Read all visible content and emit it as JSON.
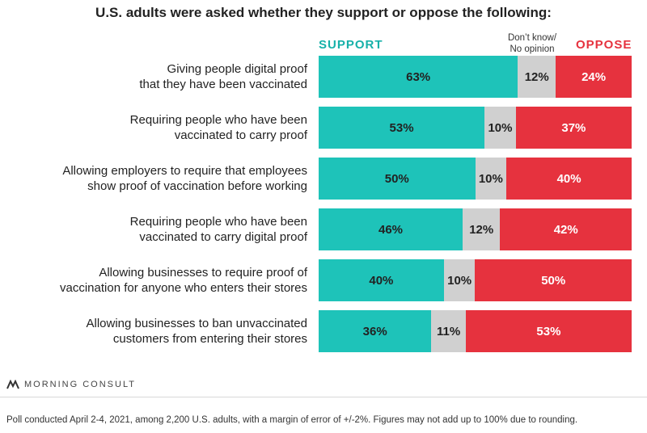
{
  "title": "U.S. adults were asked whether they support or oppose the following:",
  "legend": {
    "support": "SUPPORT",
    "neutral": "Don’t know/\nNo opinion",
    "oppose": "OPPOSE"
  },
  "colors": {
    "support": "#1ec3b9",
    "neutral": "#d0d0d0",
    "oppose": "#e6323e"
  },
  "chart_data": {
    "type": "bar",
    "orientation": "horizontal",
    "stacked": true,
    "categories": [
      "Giving people digital proof\nthat they have been vaccinated",
      "Requiring people who have been\nvaccinated to carry proof",
      "Allowing employers to require that employees\nshow proof of vaccination before working",
      "Requiring people who have been\nvaccinated to carry digital proof",
      "Allowing businesses to require proof of\nvaccination for anyone who enters their stores",
      "Allowing businesses to ban unvaccinated\ncustomers from entering their stores"
    ],
    "series": [
      {
        "name": "SUPPORT",
        "values": [
          63,
          53,
          50,
          46,
          40,
          36
        ]
      },
      {
        "name": "Don’t know/No opinion",
        "values": [
          12,
          10,
          10,
          12,
          10,
          11
        ]
      },
      {
        "name": "OPPOSE",
        "values": [
          24,
          37,
          40,
          42,
          50,
          53
        ]
      }
    ],
    "labels": [
      [
        "63%",
        "12%",
        "24%"
      ],
      [
        "53%",
        "10%",
        "37%"
      ],
      [
        "50%",
        "10%",
        "40%"
      ],
      [
        "46%",
        "12%",
        "42%"
      ],
      [
        "40%",
        "10%",
        "50%"
      ],
      [
        "36%",
        "11%",
        "53%"
      ]
    ]
  },
  "brand": "MORNING CONSULT",
  "footnote": "Poll conducted April 2-4, 2021, among 2,200 U.S. adults, with a margin of error of +/-2%. Figures may not add up to 100% due to rounding."
}
